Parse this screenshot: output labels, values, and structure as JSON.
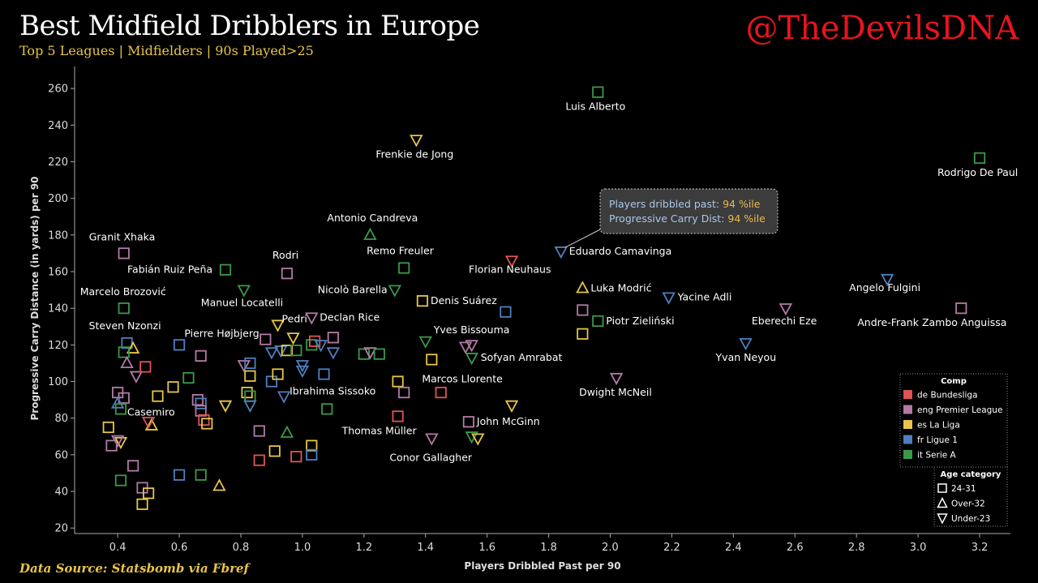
{
  "header": {
    "title": "Best Midfield Dribblers in Europe",
    "subtitle": "Top 5 Leagues | Midfielders | 90s Played>25",
    "handle": "@TheDevilsDNA",
    "source": "Data Source: Statsbomb via Fbref"
  },
  "tooltip": {
    "line1_label": "Players dribbled past: ",
    "line1_value": "94 %ile",
    "line2_label": "Progressive Carry Dist: ",
    "line2_value": "94 %ile",
    "anchor": {
      "x": 1.84,
      "y": 171
    }
  },
  "chart_data": {
    "type": "scatter",
    "xlabel": "Players Dribbled Past per 90",
    "ylabel": "Progressive Carry Distance (in yards) per 90",
    "xlim": [
      0.26,
      3.3
    ],
    "ylim": [
      17,
      272
    ],
    "xticks": [
      0.4,
      0.6,
      0.8,
      1.0,
      1.2,
      1.4,
      1.6,
      1.8,
      2.0,
      2.2,
      2.4,
      2.6,
      2.8,
      3.0,
      3.2
    ],
    "yticks": [
      20,
      40,
      60,
      80,
      100,
      120,
      140,
      160,
      180,
      200,
      220,
      240,
      260
    ],
    "grid": false,
    "legend_comp": {
      "title": "Comp",
      "position": "right",
      "items": [
        {
          "key": "bundesliga",
          "label": "de Bundesliga",
          "color": "#e05454"
        },
        {
          "key": "epl",
          "label": "eng Premier League",
          "color": "#b37aa6"
        },
        {
          "key": "laliga",
          "label": "es La Liga",
          "color": "#e8c547"
        },
        {
          "key": "ligue1",
          "label": "fr Ligue 1",
          "color": "#4f7fbf"
        },
        {
          "key": "seriea",
          "label": "it Serie A",
          "color": "#3a9a48"
        }
      ]
    },
    "legend_age": {
      "title": "Age category",
      "position": "bottom-right",
      "items": [
        {
          "shape": "square",
          "label": "24-31"
        },
        {
          "shape": "up",
          "label": "Over-32"
        },
        {
          "shape": "down",
          "label": "Under-23"
        }
      ]
    },
    "points": [
      {
        "x": 1.96,
        "y": 258,
        "comp": "seriea",
        "age": "square",
        "name": "Luis Alberto",
        "lx": -40,
        "ly": 22
      },
      {
        "x": 1.37,
        "y": 232,
        "comp": "laliga",
        "age": "down",
        "name": "Frenkie de Jong",
        "lx": -50,
        "ly": 22
      },
      {
        "x": 3.2,
        "y": 222,
        "comp": "seriea",
        "age": "square",
        "name": "Rodrigo De Paul",
        "lx": -52,
        "ly": 22
      },
      {
        "x": 1.84,
        "y": 171,
        "comp": "ligue1",
        "age": "down",
        "name": "Eduardo Camavinga",
        "lx": 10,
        "ly": 4
      },
      {
        "x": 1.22,
        "y": 180,
        "comp": "seriea",
        "age": "up",
        "name": "Antonio Candreva",
        "lx": -53,
        "ly": -17
      },
      {
        "x": 0.42,
        "y": 170,
        "comp": "epl",
        "age": "square",
        "name": "Granit Xhaka",
        "lx": -43,
        "ly": -16
      },
      {
        "x": 1.33,
        "y": 162,
        "comp": "seriea",
        "age": "square",
        "name": "Remo Freuler",
        "lx": -46,
        "ly": -17
      },
      {
        "x": 1.68,
        "y": 166,
        "comp": "bundesliga",
        "age": "down",
        "name": "Florian Neuhaus",
        "lx": -53,
        "ly": 15
      },
      {
        "x": 0.75,
        "y": 161,
        "comp": "seriea",
        "age": "square",
        "name": "Fabián Ruiz Peña",
        "lx": -121,
        "ly": 4
      },
      {
        "x": 0.95,
        "y": 159,
        "comp": "epl",
        "age": "square",
        "name": "Rodri",
        "lx": -18,
        "ly": -18
      },
      {
        "x": 1.91,
        "y": 151,
        "comp": "laliga",
        "age": "up",
        "name": "Luka Modrić",
        "lx": 10,
        "ly": 4
      },
      {
        "x": 2.19,
        "y": 146,
        "comp": "ligue1",
        "age": "down",
        "name": "Yacine Adli",
        "lx": 11,
        "ly": 4
      },
      {
        "x": 2.9,
        "y": 156,
        "comp": "ligue1",
        "age": "down",
        "name": "Angelo Fulgini",
        "lx": -47,
        "ly": 15
      },
      {
        "x": 1.3,
        "y": 150,
        "comp": "seriea",
        "age": "down",
        "name": "Nicolò Barella",
        "lx": -95,
        "ly": 4
      },
      {
        "x": 0.81,
        "y": 150,
        "comp": "seriea",
        "age": "down",
        "name": "Manuel Locatelli",
        "lx": -53,
        "ly": 20
      },
      {
        "x": 0.42,
        "y": 140,
        "comp": "seriea",
        "age": "square",
        "name": "Marcelo Brozović",
        "lx": -54,
        "ly": -16
      },
      {
        "x": 1.39,
        "y": 144,
        "comp": "laliga",
        "age": "square",
        "name": "Denis Suárez",
        "lx": 10,
        "ly": 4
      },
      {
        "x": 1.03,
        "y": 135,
        "comp": "epl",
        "age": "down",
        "name": "Declan Rice",
        "lx": 10,
        "ly": 4
      },
      {
        "x": 1.91,
        "y": 139,
        "comp": "epl",
        "age": "square",
        "name": null
      },
      {
        "x": 1.66,
        "y": 138,
        "comp": "ligue1",
        "age": "square",
        "name": null
      },
      {
        "x": 1.96,
        "y": 133,
        "comp": "seriea",
        "age": "square",
        "name": "Piotr Zieliński",
        "lx": 10,
        "ly": 4
      },
      {
        "x": 2.57,
        "y": 140,
        "comp": "epl",
        "age": "down",
        "name": "Eberechi Eze",
        "lx": -42,
        "ly": 20
      },
      {
        "x": 3.14,
        "y": 140,
        "comp": "epl",
        "age": "square",
        "name": "Andre-Frank Zambo Anguissa",
        "lx": -128,
        "ly": 22
      },
      {
        "x": 2.44,
        "y": 121,
        "comp": "ligue1",
        "age": "down",
        "name": "Yvan Neyou",
        "lx": -37,
        "ly": 22
      },
      {
        "x": 0.43,
        "y": 121,
        "comp": "ligue1",
        "age": "square",
        "name": "Steven Nzonzi",
        "lx": -47,
        "ly": -17
      },
      {
        "x": 0.92,
        "y": 131,
        "comp": "laliga",
        "age": "down",
        "name": "Pedri",
        "lx": 5,
        "ly": -3
      },
      {
        "x": 1.91,
        "y": 126,
        "comp": "laliga",
        "age": "square",
        "name": null
      },
      {
        "x": 1.4,
        "y": 122,
        "comp": "seriea",
        "age": "down",
        "name": "Yves Bissouma",
        "lx": 10,
        "ly": -10
      },
      {
        "x": 1.55,
        "y": 113,
        "comp": "seriea",
        "age": "down",
        "name": "Sofyan Amrabat",
        "lx": 11,
        "ly": 4
      },
      {
        "x": 0.88,
        "y": 123,
        "comp": "epl",
        "age": "square",
        "name": "Pierre Højbjerg",
        "lx": -100,
        "ly": -3
      },
      {
        "x": 1.42,
        "y": 112,
        "comp": "laliga",
        "age": "square",
        "name": "Marcos Llorente",
        "lx": -12,
        "ly": 28
      },
      {
        "x": 2.02,
        "y": 102,
        "comp": "epl",
        "age": "down",
        "name": "Dwight McNeil",
        "lx": -46,
        "ly": 22
      },
      {
        "x": 0.94,
        "y": 92,
        "comp": "ligue1",
        "age": "down",
        "name": "Ibrahima Sissoko",
        "lx": 7,
        "ly": -2
      },
      {
        "x": 0.51,
        "y": 76,
        "comp": "laliga",
        "age": "up",
        "name": "Casemiro",
        "lx": -30,
        "ly": -12
      },
      {
        "x": 1.54,
        "y": 78,
        "comp": "epl",
        "age": "square",
        "name": "John McGinn",
        "lx": 10,
        "ly": 4
      },
      {
        "x": 1.31,
        "y": 81,
        "comp": "bundesliga",
        "age": "square",
        "name": "Thomas Müller",
        "lx": -69,
        "ly": 22
      },
      {
        "x": 1.42,
        "y": 69,
        "comp": "epl",
        "age": "down",
        "name": "Conor Gallagher",
        "lx": -52,
        "ly": 28
      },
      {
        "x": 0.6,
        "y": 120,
        "comp": "ligue1",
        "age": "square",
        "name": null
      },
      {
        "x": 0.45,
        "y": 118,
        "comp": "laliga",
        "age": "up",
        "name": null
      },
      {
        "x": 0.42,
        "y": 116,
        "comp": "seriea",
        "age": "square",
        "name": null
      },
      {
        "x": 0.43,
        "y": 110,
        "comp": "epl",
        "age": "up",
        "name": null
      },
      {
        "x": 0.46,
        "y": 103,
        "comp": "epl",
        "age": "down",
        "name": null
      },
      {
        "x": 0.49,
        "y": 108,
        "comp": "bundesliga",
        "age": "square",
        "name": null
      },
      {
        "x": 0.67,
        "y": 114,
        "comp": "epl",
        "age": "square",
        "name": null
      },
      {
        "x": 0.63,
        "y": 102,
        "comp": "seriea",
        "age": "square",
        "name": null
      },
      {
        "x": 0.58,
        "y": 97,
        "comp": "laliga",
        "age": "square",
        "name": null
      },
      {
        "x": 0.53,
        "y": 92,
        "comp": "laliga",
        "age": "square",
        "name": null
      },
      {
        "x": 0.4,
        "y": 94,
        "comp": "epl",
        "age": "square",
        "name": null
      },
      {
        "x": 0.42,
        "y": 91,
        "comp": "epl",
        "age": "square",
        "name": null
      },
      {
        "x": 0.4,
        "y": 88,
        "comp": "ligue1",
        "age": "up",
        "name": null
      },
      {
        "x": 0.41,
        "y": 85,
        "comp": "seriea",
        "age": "square",
        "name": null
      },
      {
        "x": 0.37,
        "y": 75,
        "comp": "laliga",
        "age": "square",
        "name": null
      },
      {
        "x": 0.38,
        "y": 65,
        "comp": "epl",
        "age": "square",
        "name": null
      },
      {
        "x": 0.41,
        "y": 67,
        "comp": "laliga",
        "age": "down",
        "name": null
      },
      {
        "x": 0.4,
        "y": 68,
        "comp": "epl",
        "age": "down",
        "name": null
      },
      {
        "x": 0.5,
        "y": 78,
        "comp": "bundesliga",
        "age": "down",
        "name": null
      },
      {
        "x": 0.45,
        "y": 54,
        "comp": "epl",
        "age": "square",
        "name": null
      },
      {
        "x": 0.41,
        "y": 46,
        "comp": "seriea",
        "age": "square",
        "name": null
      },
      {
        "x": 0.48,
        "y": 42,
        "comp": "epl",
        "age": "square",
        "name": null
      },
      {
        "x": 0.5,
        "y": 39,
        "comp": "laliga",
        "age": "square",
        "name": null
      },
      {
        "x": 0.48,
        "y": 33,
        "comp": "laliga",
        "age": "square",
        "name": null
      },
      {
        "x": 0.6,
        "y": 49,
        "comp": "ligue1",
        "age": "square",
        "name": null
      },
      {
        "x": 0.67,
        "y": 49,
        "comp": "seriea",
        "age": "square",
        "name": null
      },
      {
        "x": 0.73,
        "y": 43,
        "comp": "laliga",
        "age": "up",
        "name": null
      },
      {
        "x": 0.66,
        "y": 90,
        "comp": "epl",
        "age": "square",
        "name": null
      },
      {
        "x": 0.67,
        "y": 88,
        "comp": "ligue1",
        "age": "square",
        "name": null
      },
      {
        "x": 0.67,
        "y": 84,
        "comp": "epl",
        "age": "square",
        "name": null
      },
      {
        "x": 0.68,
        "y": 79,
        "comp": "bundesliga",
        "age": "square",
        "name": null
      },
      {
        "x": 0.69,
        "y": 77,
        "comp": "laliga",
        "age": "square",
        "name": null
      },
      {
        "x": 0.75,
        "y": 87,
        "comp": "laliga",
        "age": "down",
        "name": null
      },
      {
        "x": 0.81,
        "y": 109,
        "comp": "epl",
        "age": "down",
        "name": null
      },
      {
        "x": 0.82,
        "y": 94,
        "comp": "laliga",
        "age": "square",
        "name": null
      },
      {
        "x": 0.83,
        "y": 110,
        "comp": "ligue1",
        "age": "square",
        "name": null
      },
      {
        "x": 0.83,
        "y": 103,
        "comp": "laliga",
        "age": "square",
        "name": null
      },
      {
        "x": 0.83,
        "y": 92,
        "comp": "seriea",
        "age": "square",
        "name": null
      },
      {
        "x": 0.83,
        "y": 87,
        "comp": "ligue1",
        "age": "down",
        "name": null
      },
      {
        "x": 0.86,
        "y": 73,
        "comp": "epl",
        "age": "square",
        "name": null
      },
      {
        "x": 0.86,
        "y": 57,
        "comp": "bundesliga",
        "age": "square",
        "name": null
      },
      {
        "x": 0.9,
        "y": 100,
        "comp": "ligue1",
        "age": "square",
        "name": null
      },
      {
        "x": 0.9,
        "y": 116,
        "comp": "ligue1",
        "age": "down",
        "name": null
      },
      {
        "x": 0.91,
        "y": 62,
        "comp": "laliga",
        "age": "square",
        "name": null
      },
      {
        "x": 0.92,
        "y": 104,
        "comp": "laliga",
        "age": "square",
        "name": null
      },
      {
        "x": 0.93,
        "y": 117,
        "comp": "ligue1",
        "age": "down",
        "name": null
      },
      {
        "x": 0.95,
        "y": 117,
        "comp": "laliga",
        "age": "square",
        "name": null
      },
      {
        "x": 0.95,
        "y": 72,
        "comp": "seriea",
        "age": "up",
        "name": null
      },
      {
        "x": 0.97,
        "y": 124,
        "comp": "laliga",
        "age": "down",
        "name": null
      },
      {
        "x": 0.98,
        "y": 117,
        "comp": "seriea",
        "age": "square",
        "name": null
      },
      {
        "x": 0.98,
        "y": 59,
        "comp": "bundesliga",
        "age": "square",
        "name": null
      },
      {
        "x": 1.0,
        "y": 106,
        "comp": "ligue1",
        "age": "down",
        "name": null
      },
      {
        "x": 1.0,
        "y": 109,
        "comp": "ligue1",
        "age": "down",
        "name": null
      },
      {
        "x": 1.03,
        "y": 65,
        "comp": "laliga",
        "age": "square",
        "name": null
      },
      {
        "x": 1.03,
        "y": 60,
        "comp": "ligue1",
        "age": "square",
        "name": null
      },
      {
        "x": 1.03,
        "y": 120,
        "comp": "seriea",
        "age": "square",
        "name": null
      },
      {
        "x": 1.04,
        "y": 122,
        "comp": "bundesliga",
        "age": "square",
        "name": null
      },
      {
        "x": 1.06,
        "y": 120,
        "comp": "ligue1",
        "age": "down",
        "name": null
      },
      {
        "x": 1.07,
        "y": 104,
        "comp": "ligue1",
        "age": "square",
        "name": null
      },
      {
        "x": 1.08,
        "y": 85,
        "comp": "seriea",
        "age": "square",
        "name": null
      },
      {
        "x": 1.1,
        "y": 124,
        "comp": "epl",
        "age": "square",
        "name": null
      },
      {
        "x": 1.1,
        "y": 116,
        "comp": "ligue1",
        "age": "down",
        "name": null
      },
      {
        "x": 1.2,
        "y": 115,
        "comp": "seriea",
        "age": "square",
        "name": null
      },
      {
        "x": 1.22,
        "y": 116,
        "comp": "epl",
        "age": "down",
        "name": null
      },
      {
        "x": 1.25,
        "y": 115,
        "comp": "seriea",
        "age": "square",
        "name": null
      },
      {
        "x": 1.31,
        "y": 100,
        "comp": "laliga",
        "age": "square",
        "name": null
      },
      {
        "x": 1.33,
        "y": 94,
        "comp": "epl",
        "age": "square",
        "name": null
      },
      {
        "x": 1.45,
        "y": 94,
        "comp": "bundesliga",
        "age": "square",
        "name": null
      },
      {
        "x": 1.53,
        "y": 119,
        "comp": "epl",
        "age": "down",
        "name": null
      },
      {
        "x": 1.55,
        "y": 120,
        "comp": "epl",
        "age": "down",
        "name": null
      },
      {
        "x": 1.55,
        "y": 70,
        "comp": "seriea",
        "age": "down",
        "name": null
      },
      {
        "x": 1.57,
        "y": 69,
        "comp": "laliga",
        "age": "down",
        "name": null
      },
      {
        "x": 1.68,
        "y": 87,
        "comp": "laliga",
        "age": "down",
        "name": null
      }
    ]
  }
}
